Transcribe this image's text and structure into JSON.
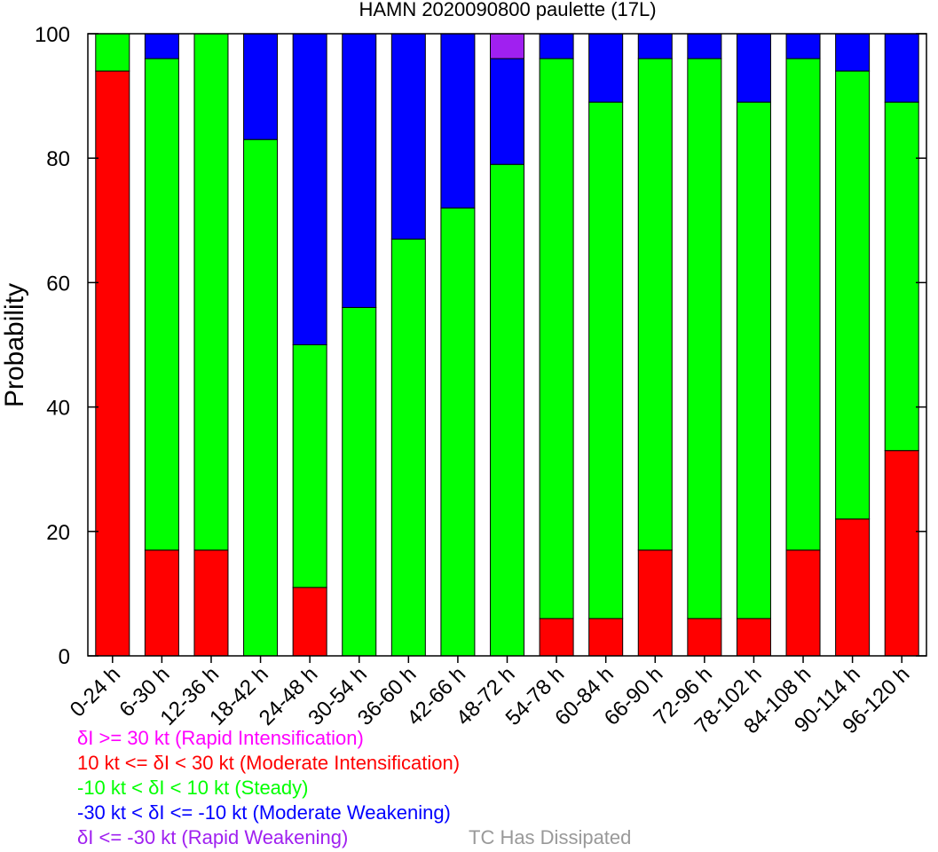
{
  "chart_data": {
    "type": "bar",
    "stacked": true,
    "title": "HAMN 2020090800 paulette (17L)",
    "ylabel": "Probability",
    "xlabel": "",
    "ylim": [
      0,
      100
    ],
    "yticks": [
      0,
      20,
      40,
      60,
      80,
      100
    ],
    "grid": false,
    "categories": [
      "0-24 h",
      "6-30 h",
      "12-36 h",
      "18-42 h",
      "24-48 h",
      "30-54 h",
      "36-60 h",
      "42-66 h",
      "48-72 h",
      "54-78 h",
      "60-84 h",
      "66-90 h",
      "72-96 h",
      "78-102 h",
      "84-108 h",
      "90-114 h",
      "96-120 h"
    ],
    "series": [
      {
        "key": "moderate_intensification",
        "color": "#ff0000",
        "values": [
          94,
          17,
          17,
          0,
          11,
          0,
          0,
          0,
          0,
          6,
          6,
          17,
          6,
          6,
          17,
          22,
          33
        ]
      },
      {
        "key": "steady",
        "color": "#00ff00",
        "values": [
          6,
          79,
          83,
          83,
          39,
          56,
          67,
          72,
          79,
          90,
          83,
          79,
          90,
          83,
          79,
          72,
          56
        ]
      },
      {
        "key": "moderate_weakening",
        "color": "#0000ff",
        "values": [
          0,
          4,
          0,
          17,
          50,
          44,
          33,
          28,
          17,
          4,
          11,
          4,
          4,
          11,
          4,
          6,
          11
        ]
      },
      {
        "key": "rapid_weakening",
        "color": "#a020f0",
        "values": [
          0,
          0,
          0,
          0,
          0,
          0,
          0,
          0,
          4,
          0,
          0,
          0,
          0,
          0,
          0,
          0,
          0
        ]
      }
    ]
  },
  "legend": [
    {
      "text": "δI >= 30 kt (Rapid Intensification)",
      "color": "#ff00ff"
    },
    {
      "text": "10 kt <= δI < 30 kt (Moderate Intensification)",
      "color": "#ff0000"
    },
    {
      "text": "-10 kt < δI < 10 kt (Steady)",
      "color": "#00ff00"
    },
    {
      "text": "-30 kt < δI <= -10 kt (Moderate Weakening)",
      "color": "#0000ff"
    },
    {
      "text": "δI <= -30 kt (Rapid Weakening)",
      "color": "#a020f0"
    }
  ],
  "dissipated_label": {
    "text": "TC Has Dissipated",
    "color": "#999999"
  }
}
